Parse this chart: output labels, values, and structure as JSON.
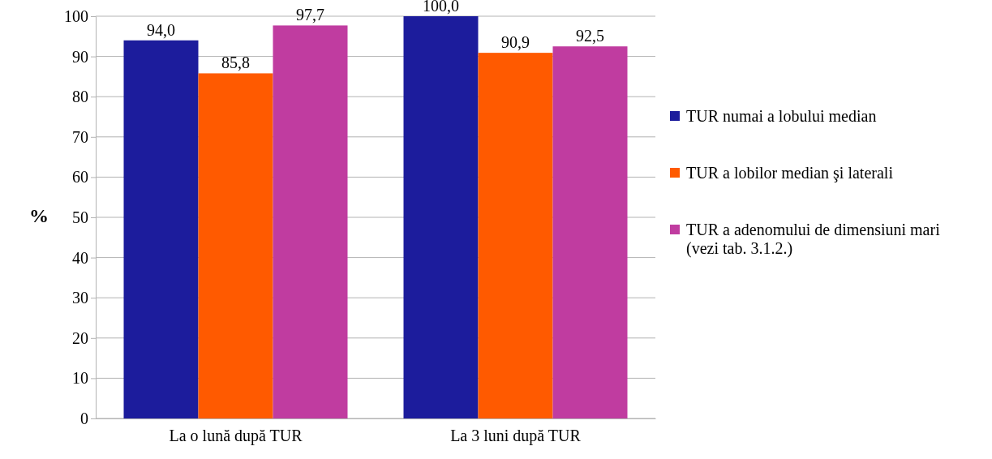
{
  "chart_data": {
    "type": "bar",
    "ylabel": "%",
    "categories": [
      "La o lună după TUR",
      "La 3 luni după TUR"
    ],
    "series": [
      {
        "name": "TUR numai a lobului median",
        "color": "#1c1c9c",
        "values": [
          94.0,
          100.0
        ],
        "value_labels": [
          "94,0",
          "100,0"
        ]
      },
      {
        "name": "TUR a lobilor median şi laterali",
        "color": "#ff5a00",
        "values": [
          85.8,
          90.9
        ],
        "value_labels": [
          "85,8",
          "90,9"
        ]
      },
      {
        "name": "TUR a adenomului de dimensiuni mari (vezi tab. 3.1.2.)",
        "color": "#c03ca0",
        "values": [
          97.7,
          92.5
        ],
        "value_labels": [
          "97,7",
          "92,5"
        ]
      }
    ],
    "ylim": [
      0,
      100
    ],
    "yticks": [
      0,
      10,
      20,
      30,
      40,
      50,
      60,
      70,
      80,
      90,
      100
    ],
    "grid": "y",
    "legend": "right"
  }
}
